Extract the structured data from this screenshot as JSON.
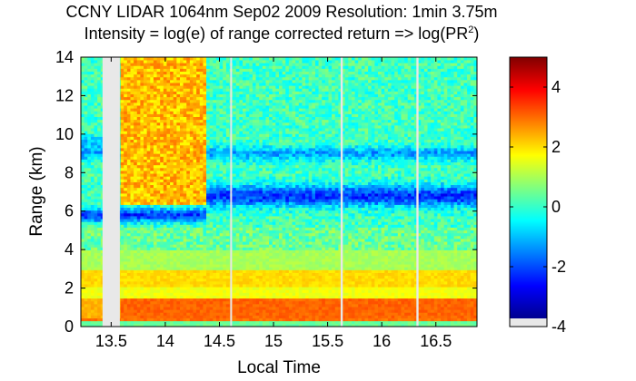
{
  "chart_data": {
    "type": "heatmap",
    "title_line1": "CCNY LIDAR 1064nm Sep02 2009 Resolution: 1min 3.75m",
    "title_line2_prefix": "Intensity = log(e) of range corrected return => log(PR",
    "title_line2_sup": "2",
    "title_line2_suffix": ")",
    "xlabel": "Local Time",
    "ylabel": "Range (km)",
    "xlim": [
      13.22,
      16.88
    ],
    "ylim": [
      0,
      14
    ],
    "xticks": [
      13.5,
      14,
      14.5,
      15,
      15.5,
      16,
      16.5
    ],
    "xtick_labels": [
      "13.5",
      "14",
      "14.5",
      "15",
      "15.5",
      "16",
      "16.5"
    ],
    "yticks": [
      0,
      2,
      4,
      6,
      8,
      10,
      12,
      14
    ],
    "ytick_labels": [
      "0",
      "2",
      "4",
      "6",
      "8",
      "10",
      "12",
      "14"
    ],
    "colorbar": {
      "range": [
        -4,
        5
      ],
      "ticks": [
        -4,
        -2,
        0,
        2,
        4
      ],
      "tick_labels": [
        "-4",
        "-2",
        "0",
        "2",
        "4"
      ],
      "colormap": "jet"
    },
    "data_gaps": [
      {
        "x0": 13.42,
        "x1": 13.58
      },
      {
        "x0": 14.6,
        "x1": 14.61
      },
      {
        "x0": 15.62,
        "x1": 15.64
      },
      {
        "x0": 16.32,
        "x1": 16.34
      }
    ],
    "profile_features": {
      "surface_layer_km": [
        0,
        0.25
      ],
      "boundary_layer_top_km": 1.5,
      "residual_layer_km": [
        2.0,
        3.0
      ],
      "blue_layer_early_km": 5.8,
      "blue_layer_late_km": 6.8,
      "blue_layer_upper_km": 9.0,
      "bright_region_x": [
        13.6,
        14.38
      ],
      "bright_region_km": [
        6.3,
        14
      ]
    }
  }
}
